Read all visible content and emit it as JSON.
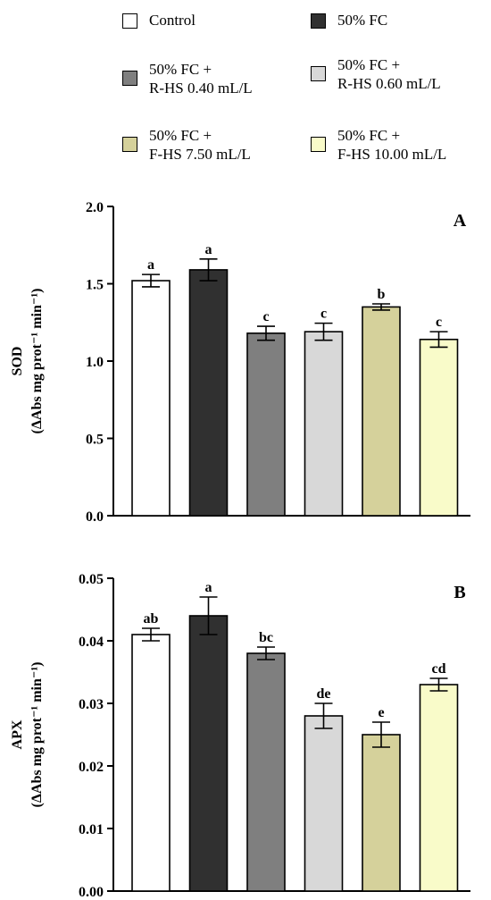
{
  "legend": [
    {
      "label": "Control",
      "color": "#ffffff"
    },
    {
      "label": "50% FC",
      "color": "#303030"
    },
    {
      "label": "50% FC +\nR-HS 0.40 mL/L",
      "color": "#7f7f7f"
    },
    {
      "label": "50% FC +\nR-HS 0.60 mL/L",
      "color": "#d8d8d8"
    },
    {
      "label": "50% FC +\nF-HS 7.50 mL/L",
      "color": "#d5d19b"
    },
    {
      "label": "50% FC +\nF-HS 10.00 mL/L",
      "color": "#f9fbc9"
    }
  ],
  "chart_data": [
    {
      "type": "bar",
      "panel_label": "A",
      "ylabel_line1": "SOD",
      "ylabel_line2": "(ΔAbs mg prot⁻¹ min⁻¹)",
      "ylim": [
        0,
        2.0
      ],
      "y_ticks": [
        "0.0",
        "0.5",
        "1.0",
        "1.5",
        "2.0"
      ],
      "categories": [
        "Control",
        "50% FC",
        "50% FC + R-HS 0.40 mL/L",
        "50% FC + R-HS 0.60 mL/L",
        "50% FC + F-HS 7.50 mL/L",
        "50% FC + F-HS 10.00 mL/L"
      ],
      "values": [
        1.52,
        1.59,
        1.18,
        1.19,
        1.35,
        1.14
      ],
      "errors": [
        0.04,
        0.07,
        0.045,
        0.055,
        0.02,
        0.05
      ],
      "letters": [
        "a",
        "a",
        "c",
        "c",
        "b",
        "c"
      ],
      "colors": [
        "#ffffff",
        "#303030",
        "#7f7f7f",
        "#d8d8d8",
        "#d5d19b",
        "#f9fbc9"
      ]
    },
    {
      "type": "bar",
      "panel_label": "B",
      "ylabel_line1": "APX",
      "ylabel_line2": "(ΔAbs mg prot⁻¹ min⁻¹)",
      "ylim": [
        0,
        0.05
      ],
      "y_ticks": [
        "0.00",
        "0.01",
        "0.02",
        "0.03",
        "0.04",
        "0.05"
      ],
      "categories": [
        "Control",
        "50% FC",
        "50% FC + R-HS 0.40 mL/L",
        "50% FC + R-HS 0.60 mL/L",
        "50% FC + F-HS 7.50 mL/L",
        "50% FC + F-HS 10.00 mL/L"
      ],
      "values": [
        0.041,
        0.044,
        0.038,
        0.028,
        0.025,
        0.033
      ],
      "errors": [
        0.001,
        0.003,
        0.001,
        0.002,
        0.002,
        0.001
      ],
      "letters": [
        "ab",
        "a",
        "bc",
        "de",
        "e",
        "cd"
      ],
      "colors": [
        "#ffffff",
        "#303030",
        "#7f7f7f",
        "#d8d8d8",
        "#d5d19b",
        "#f9fbc9"
      ]
    }
  ]
}
